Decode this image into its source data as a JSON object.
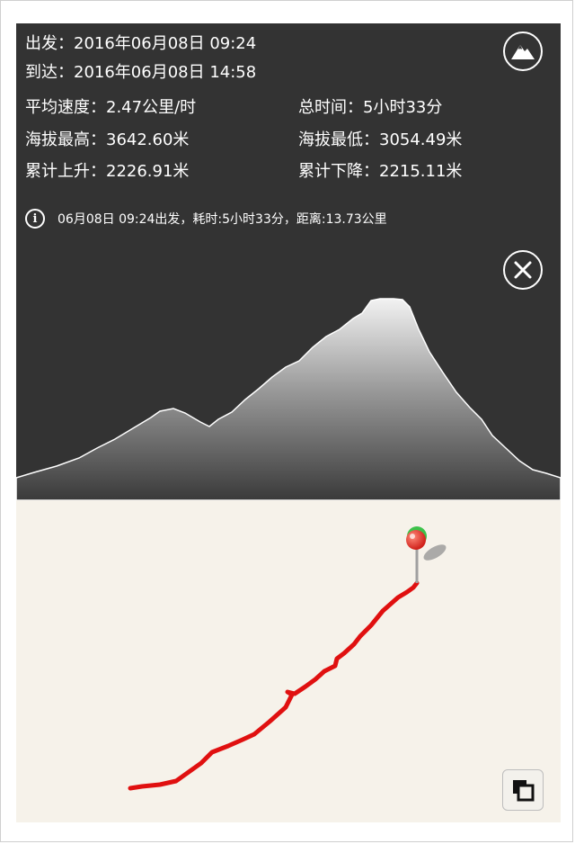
{
  "stats": {
    "depart": {
      "label": "出发：",
      "value": "2016年06月08日 09:24"
    },
    "arrive": {
      "label": "到达：",
      "value": "2016年06月08日 14:58"
    },
    "avg_speed": {
      "label": "平均速度：",
      "value": "2.47公里/时"
    },
    "total_time": {
      "label": "总时间：",
      "value": "5小时33分"
    },
    "max_alt": {
      "label": "海拔最高：",
      "value": "3642.60米"
    },
    "min_alt": {
      "label": "海拔最低：",
      "value": "3054.49米"
    },
    "total_ascent": {
      "label": "累计上升：",
      "value": "2226.91米"
    },
    "total_descent": {
      "label": "累计下降：",
      "value": "2215.11米"
    }
  },
  "summary": {
    "info_icon_glyph": "i",
    "text": "06月08日 09:24出发，耗时:5小时33分，距离:13.73公里"
  },
  "buttons": {
    "terrain_icon": "mountain-icon",
    "close_icon": "close-icon",
    "layers_icon": "layers-icon"
  },
  "colors": {
    "panel_bg": "#333333",
    "map_bg": "#f6f2ea",
    "track": "#e01010",
    "pin_head": "#e8302a",
    "pin_top": "#3cc24a"
  }
}
